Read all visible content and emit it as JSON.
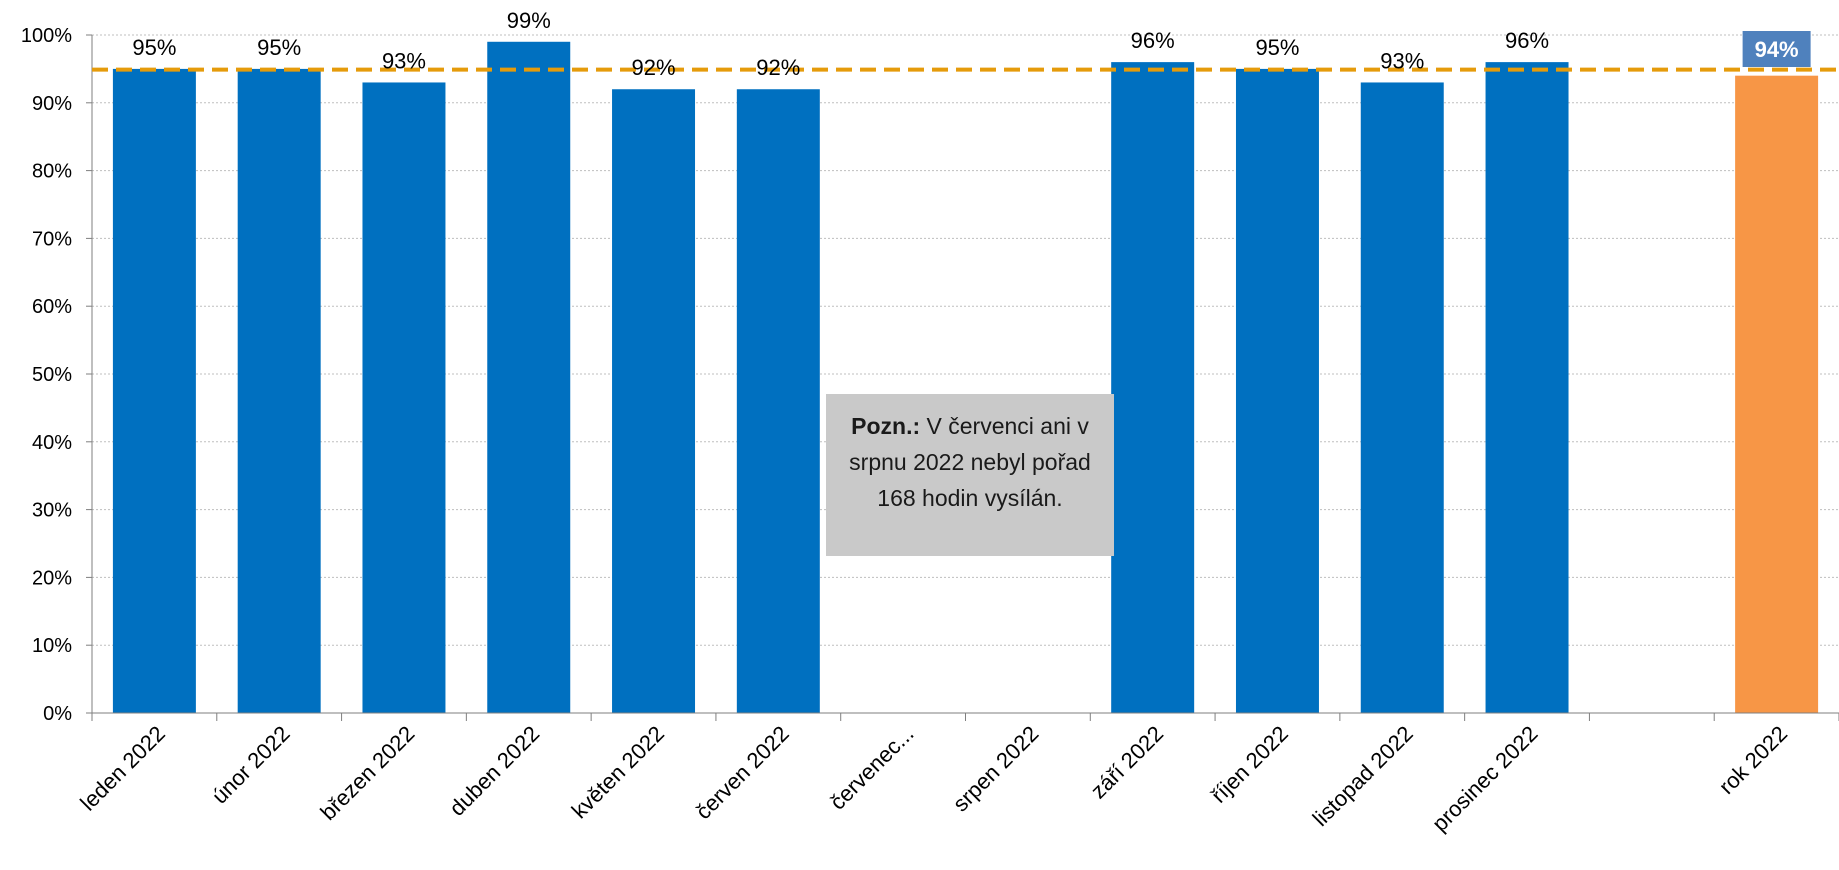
{
  "chart_data": {
    "type": "bar",
    "categories": [
      "leden 2022",
      "únor 2022",
      "březen 2022",
      "duben 2022",
      "květen 2022",
      "červen 2022",
      "červenec...",
      "srpen 2022",
      "září 2022",
      "říjen 2022",
      "listopad 2022",
      "prosinec 2022",
      "",
      "rok 2022"
    ],
    "values": [
      95,
      95,
      93,
      99,
      92,
      92,
      null,
      null,
      96,
      95,
      93,
      96,
      null,
      94
    ],
    "data_labels": [
      "95%",
      "95%",
      "93%",
      "99%",
      "92%",
      "92%",
      "",
      "",
      "96%",
      "95%",
      "93%",
      "96%",
      "",
      "94%"
    ],
    "ylim": [
      0,
      100
    ],
    "yticks": [
      "0%",
      "10%",
      "20%",
      "30%",
      "40%",
      "50%",
      "60%",
      "70%",
      "80%",
      "90%",
      "100%"
    ],
    "grid": true,
    "reference_line": {
      "value": 94,
      "label": "94%",
      "style": "dashed"
    },
    "annotation": {
      "bold": "Pozn.:",
      "text": " V červenci ani v srpnu 2022 nebyl pořad 168 hodin vysílán."
    },
    "colors": {
      "bar": "#0070C0",
      "summary_bar": "#F79646",
      "reference_line": "#E59B0B",
      "reference_label_bg": "#4F81BD",
      "note_bg": "#C9C9C9",
      "grid": "#BFBFBF"
    }
  }
}
